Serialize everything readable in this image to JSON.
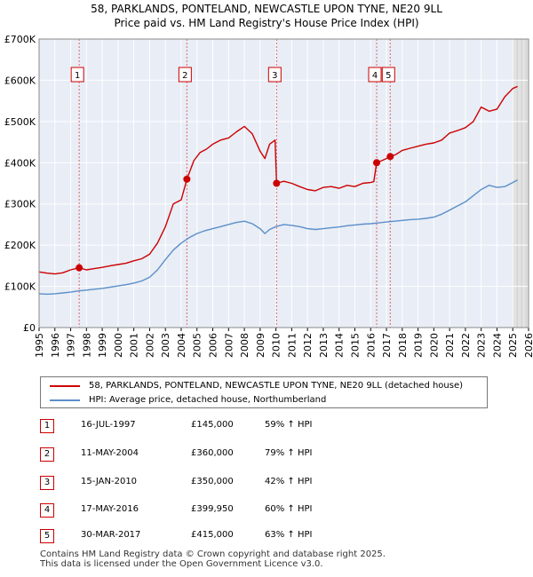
{
  "chart_data": {
    "type": "line",
    "title": "58, PARKLANDS, PONTELAND, NEWCASTLE UPON TYNE, NE20 9LL",
    "subtitle": "Price paid vs. HM Land Registry's House Price Index (HPI)",
    "xlabel": "",
    "ylabel": "",
    "xlim": [
      1995,
      2026
    ],
    "ylim": [
      0,
      700000
    ],
    "x_ticks": [
      "1995",
      "1996",
      "1997",
      "1998",
      "1999",
      "2000",
      "2001",
      "2002",
      "2003",
      "2004",
      "2005",
      "2006",
      "2007",
      "2008",
      "2009",
      "2010",
      "2011",
      "2012",
      "2013",
      "2014",
      "2015",
      "2016",
      "2017",
      "2018",
      "2019",
      "2020",
      "2021",
      "2022",
      "2023",
      "2024",
      "2025",
      "2026"
    ],
    "y_ticks": [
      {
        "value": 0,
        "label": "£0"
      },
      {
        "value": 100000,
        "label": "£100K"
      },
      {
        "value": 200000,
        "label": "£200K"
      },
      {
        "value": 300000,
        "label": "£300K"
      },
      {
        "value": 400000,
        "label": "£400K"
      },
      {
        "value": 500000,
        "label": "£500K"
      },
      {
        "value": 600000,
        "label": "£600K"
      },
      {
        "value": 700000,
        "label": "£700K"
      }
    ],
    "grid": true,
    "legend_position": "below",
    "series": [
      {
        "name": "58, PARKLANDS, PONTELAND, NEWCASTLE UPON TYNE, NE20 9LL (detached house)",
        "color": "#cc0000",
        "x": [
          1995.0,
          1995.5,
          1996.0,
          1996.5,
          1997.0,
          1997.54,
          1998.0,
          1998.5,
          1999.0,
          1999.5,
          2000.0,
          2000.5,
          2001.0,
          2001.5,
          2002.0,
          2002.5,
          2003.0,
          2003.5,
          2004.0,
          2004.36,
          2004.8,
          2005.2,
          2005.6,
          2006.0,
          2006.5,
          2007.0,
          2007.5,
          2008.0,
          2008.5,
          2009.0,
          2009.3,
          2009.6,
          2009.95,
          2010.04,
          2010.5,
          2011.0,
          2011.5,
          2012.0,
          2012.5,
          2013.0,
          2013.5,
          2014.0,
          2014.5,
          2015.0,
          2015.5,
          2016.0,
          2016.2,
          2016.38,
          2016.7,
          2017.0,
          2017.24,
          2017.6,
          2018.0,
          2018.5,
          2019.0,
          2019.5,
          2020.0,
          2020.5,
          2021.0,
          2021.5,
          2022.0,
          2022.5,
          2023.0,
          2023.5,
          2024.0,
          2024.5,
          2025.0,
          2025.3
        ],
        "values": [
          135000,
          132000,
          130000,
          133000,
          140000,
          145000,
          140000,
          143000,
          146000,
          150000,
          153000,
          156000,
          162000,
          167000,
          178000,
          205000,
          245000,
          300000,
          310000,
          360000,
          405000,
          425000,
          433000,
          445000,
          455000,
          460000,
          475000,
          488000,
          470000,
          428000,
          410000,
          445000,
          455000,
          350000,
          355000,
          350000,
          342000,
          335000,
          332000,
          340000,
          342000,
          338000,
          345000,
          342000,
          350000,
          352000,
          354000,
          399950,
          405000,
          410000,
          415000,
          420000,
          430000,
          435000,
          440000,
          445000,
          448000,
          455000,
          472000,
          478000,
          485000,
          500000,
          535000,
          525000,
          530000,
          560000,
          580000,
          585000
        ]
      },
      {
        "name": "HPI: Average price, detached house, Northumberland",
        "color": "#5b8fc9",
        "x": [
          1995.0,
          1995.5,
          1996.0,
          1996.5,
          1997.0,
          1997.5,
          1998.0,
          1998.5,
          1999.0,
          1999.5,
          2000.0,
          2000.5,
          2001.0,
          2001.5,
          2002.0,
          2002.5,
          2003.0,
          2003.5,
          2004.0,
          2004.5,
          2005.0,
          2005.5,
          2006.0,
          2006.5,
          2007.0,
          2007.5,
          2008.0,
          2008.5,
          2009.0,
          2009.3,
          2009.6,
          2010.0,
          2010.5,
          2011.0,
          2011.5,
          2012.0,
          2012.5,
          2013.0,
          2013.5,
          2014.0,
          2014.5,
          2015.0,
          2015.5,
          2016.0,
          2016.5,
          2017.0,
          2017.5,
          2018.0,
          2018.5,
          2019.0,
          2019.5,
          2020.0,
          2020.5,
          2021.0,
          2021.5,
          2022.0,
          2022.5,
          2023.0,
          2023.5,
          2024.0,
          2024.5,
          2025.0,
          2025.3
        ],
        "values": [
          82000,
          81000,
          82000,
          84000,
          86000,
          89000,
          91000,
          93000,
          95000,
          98000,
          101000,
          104000,
          108000,
          113000,
          122000,
          140000,
          165000,
          188000,
          205000,
          218000,
          228000,
          235000,
          240000,
          245000,
          250000,
          255000,
          258000,
          252000,
          240000,
          228000,
          238000,
          245000,
          250000,
          248000,
          245000,
          240000,
          238000,
          240000,
          242000,
          244000,
          247000,
          249000,
          251000,
          252000,
          254000,
          256000,
          258000,
          260000,
          262000,
          263000,
          265000,
          268000,
          275000,
          285000,
          295000,
          305000,
          320000,
          335000,
          345000,
          340000,
          342000,
          352000,
          358000
        ]
      }
    ],
    "sale_markers": [
      {
        "label": "1",
        "x": 1997.54,
        "value": 145000
      },
      {
        "label": "2",
        "x": 2004.36,
        "value": 360000
      },
      {
        "label": "3",
        "x": 2010.04,
        "value": 350000
      },
      {
        "label": "4",
        "x": 2016.38,
        "value": 399950
      },
      {
        "label": "5",
        "x": 2017.24,
        "value": 415000
      }
    ],
    "future_from": 2025.0
  },
  "legend": {
    "property": "58, PARKLANDS, PONTELAND, NEWCASTLE UPON TYNE, NE20 9LL (detached house)",
    "hpi": "HPI: Average price, detached house, Northumberland"
  },
  "sales": [
    {
      "num": "1",
      "date": "16-JUL-1997",
      "price": "£145,000",
      "hpi": "59% ↑ HPI"
    },
    {
      "num": "2",
      "date": "11-MAY-2004",
      "price": "£360,000",
      "hpi": "79% ↑ HPI"
    },
    {
      "num": "3",
      "date": "15-JAN-2010",
      "price": "£350,000",
      "hpi": "42% ↑ HPI"
    },
    {
      "num": "4",
      "date": "17-MAY-2016",
      "price": "£399,950",
      "hpi": "60% ↑ HPI"
    },
    {
      "num": "5",
      "date": "30-MAR-2017",
      "price": "£415,000",
      "hpi": "63% ↑ HPI"
    }
  ],
  "footer": {
    "line1": "Contains HM Land Registry data © Crown copyright and database right 2025.",
    "line2": "This data is licensed under the Open Government Licence v3.0."
  }
}
